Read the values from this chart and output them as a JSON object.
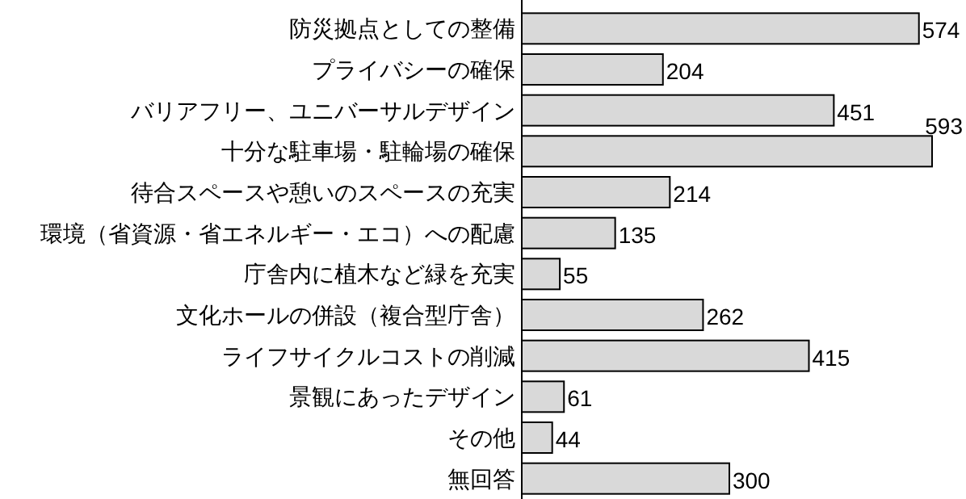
{
  "chart_data": {
    "type": "bar",
    "orientation": "horizontal",
    "data_labels": true,
    "categories": [
      "防災拠点としての整備",
      "プライバシーの確保",
      "バリアフリー、ユニバーサルデザイン",
      "十分な駐車場・駐輪場の確保",
      "待合スペースや憩いのスペースの充実",
      "環境（省資源・省エネルギー・エコ）への配慮",
      "庁舎内に植木など緑を充実",
      "文化ホールの併設（複合型庁舎）",
      "ライフサイクルコストの削減",
      "景観にあったデザイン",
      "その他",
      "無回答"
    ],
    "values": [
      574,
      204,
      451,
      593,
      214,
      135,
      55,
      262,
      415,
      61,
      44,
      300
    ],
    "color": "#d9d9d9"
  }
}
